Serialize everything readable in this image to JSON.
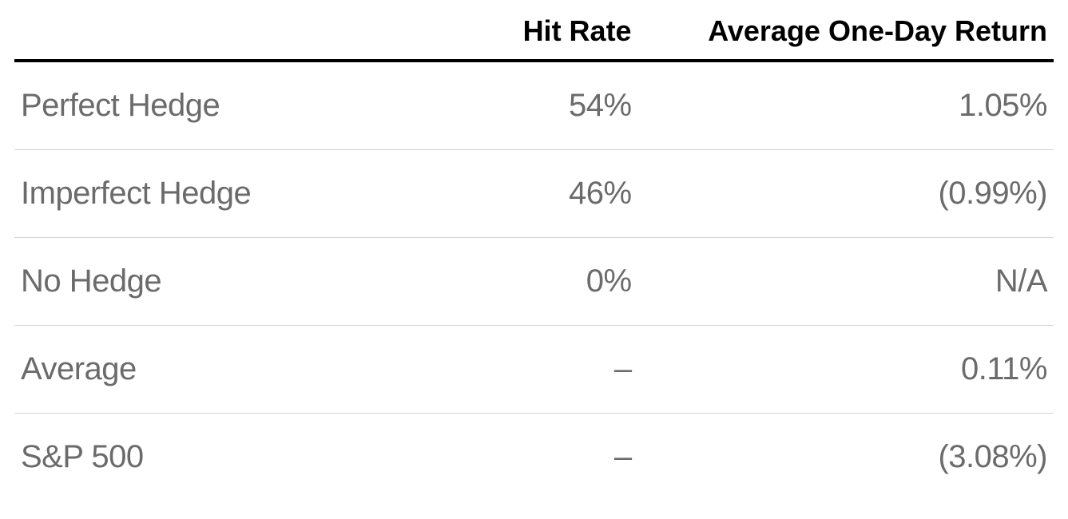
{
  "table": {
    "type": "table",
    "header_color": "#000000",
    "header_fontsize": 36,
    "header_fontweight": 600,
    "body_color": "#6b6b6b",
    "body_fontsize": 40,
    "body_fontweight": 400,
    "header_border_color": "#000000",
    "header_border_width": 4,
    "row_border_color": "#d4d4d4",
    "row_border_width": 1,
    "background_color": "#ffffff",
    "columns": [
      {
        "label": "",
        "align": "left",
        "width_pct": 36
      },
      {
        "label": "Hit Rate",
        "align": "right",
        "width_pct": 24
      },
      {
        "label": "Average One-Day Return",
        "align": "right",
        "width_pct": 40
      }
    ],
    "rows": [
      {
        "label": "Perfect Hedge",
        "hit_rate": "54%",
        "return": "1.05%"
      },
      {
        "label": "Imperfect Hedge",
        "hit_rate": "46%",
        "return": "(0.99%)"
      },
      {
        "label": "No Hedge",
        "hit_rate": "0%",
        "return": "N/A"
      },
      {
        "label": "Average",
        "hit_rate": "–",
        "return": "0.11%"
      },
      {
        "label": "S&P 500",
        "hit_rate": "–",
        "return": "(3.08%)"
      }
    ]
  }
}
